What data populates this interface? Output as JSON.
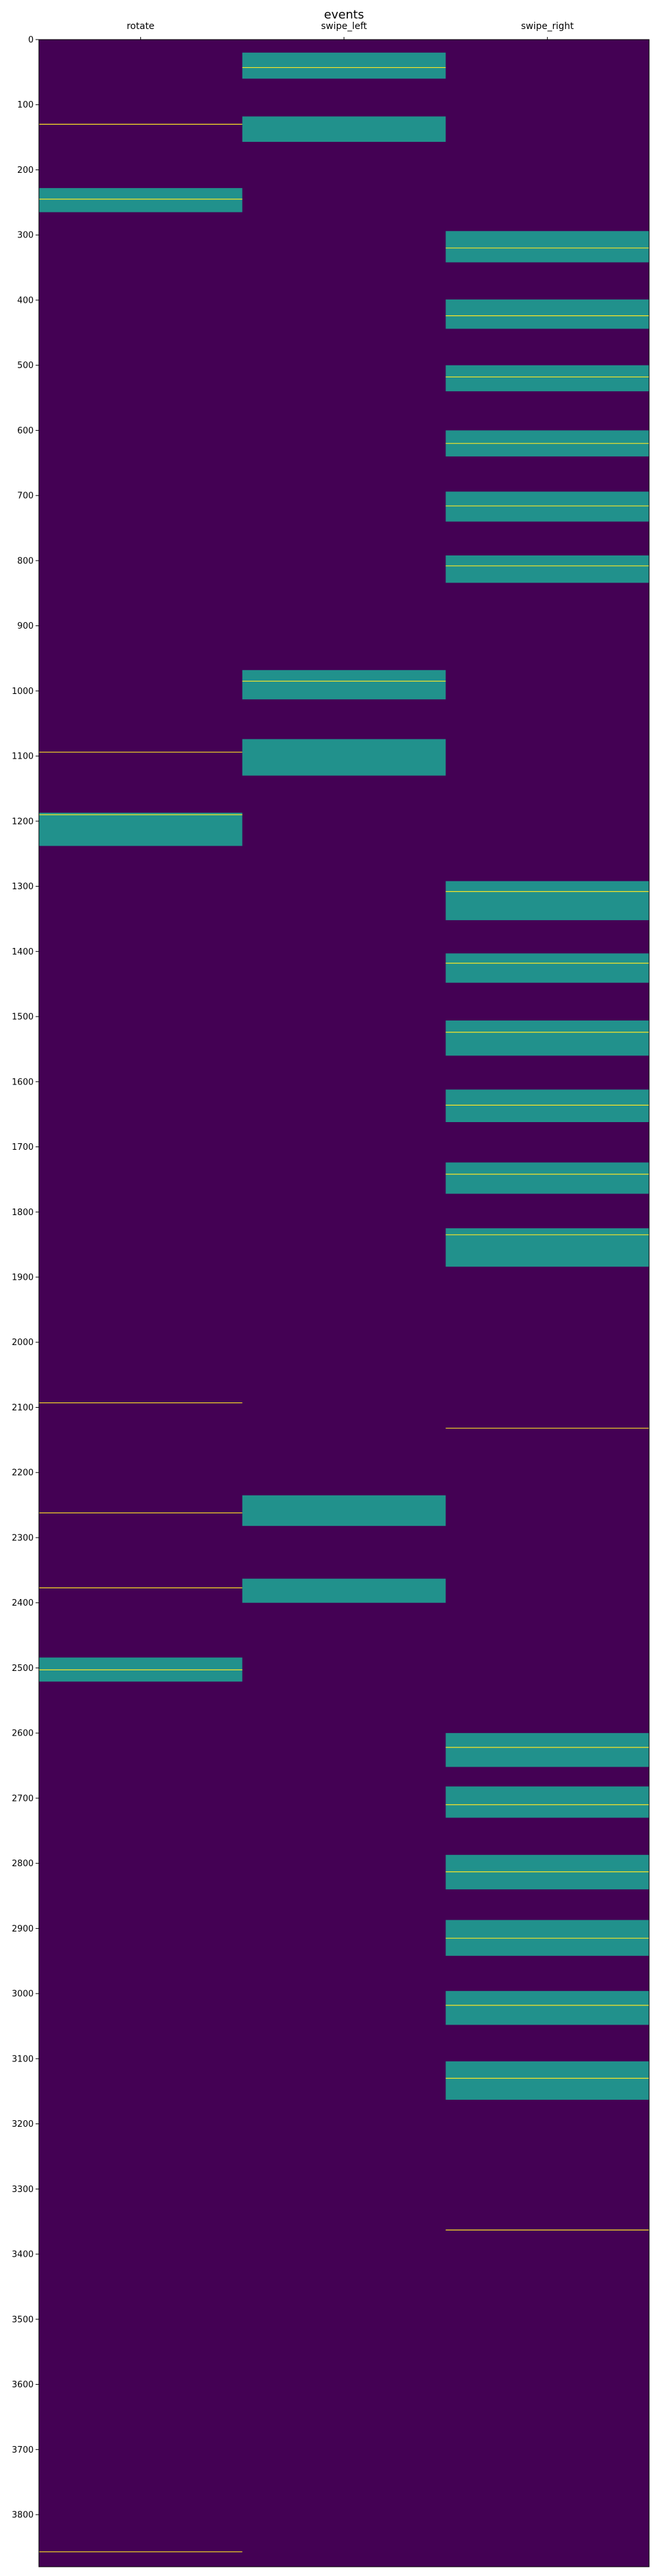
{
  "chart_data": {
    "type": "heatmap",
    "title": "events",
    "columns": [
      "rotate",
      "swipe_left",
      "swipe_right"
    ],
    "ylim": [
      0,
      3880
    ],
    "y_inverted": true,
    "y_ticks": [
      0,
      100,
      200,
      300,
      400,
      500,
      600,
      700,
      800,
      900,
      1000,
      1100,
      1200,
      1300,
      1400,
      1500,
      1600,
      1700,
      1800,
      1900,
      2000,
      2100,
      2200,
      2300,
      2400,
      2500,
      2600,
      2700,
      2800,
      2900,
      3000,
      3100,
      3200,
      3300,
      3400,
      3500,
      3600,
      3700,
      3800
    ],
    "x_axis_position": "top",
    "grid": false,
    "colormap": "viridis",
    "colors": {
      "background": "#440154",
      "band": "#21918c",
      "line": "#fde725"
    },
    "series": [
      {
        "name": "rotate",
        "bands": [
          [
            228,
            265
          ],
          [
            1187,
            1238
          ],
          [
            2484,
            2521
          ]
        ],
        "lines": [
          130,
          245,
          1094,
          1190,
          2093,
          2262,
          2377,
          2503,
          3857
        ]
      },
      {
        "name": "swipe_left",
        "bands": [
          [
            20,
            60
          ],
          [
            118,
            157
          ],
          [
            968,
            1013
          ],
          [
            1074,
            1130
          ],
          [
            2235,
            2282
          ],
          [
            2363,
            2400
          ]
        ],
        "lines": [
          43,
          985
        ]
      },
      {
        "name": "swipe_right",
        "bands": [
          [
            294,
            342
          ],
          [
            399,
            444
          ],
          [
            500,
            540
          ],
          [
            600,
            640
          ],
          [
            694,
            740
          ],
          [
            792,
            834
          ],
          [
            1292,
            1352
          ],
          [
            1403,
            1448
          ],
          [
            1506,
            1560
          ],
          [
            1612,
            1662
          ],
          [
            1724,
            1772
          ],
          [
            1825,
            1884
          ],
          [
            2600,
            2652
          ],
          [
            2682,
            2730
          ],
          [
            2787,
            2840
          ],
          [
            2887,
            2942
          ],
          [
            2996,
            3048
          ],
          [
            3104,
            3163
          ]
        ],
        "lines": [
          320,
          424,
          518,
          620,
          716,
          808,
          1308,
          1418,
          1524,
          1636,
          1742,
          1835,
          2132,
          2622,
          2710,
          2813,
          2915,
          3018,
          3130,
          3363
        ]
      }
    ]
  }
}
